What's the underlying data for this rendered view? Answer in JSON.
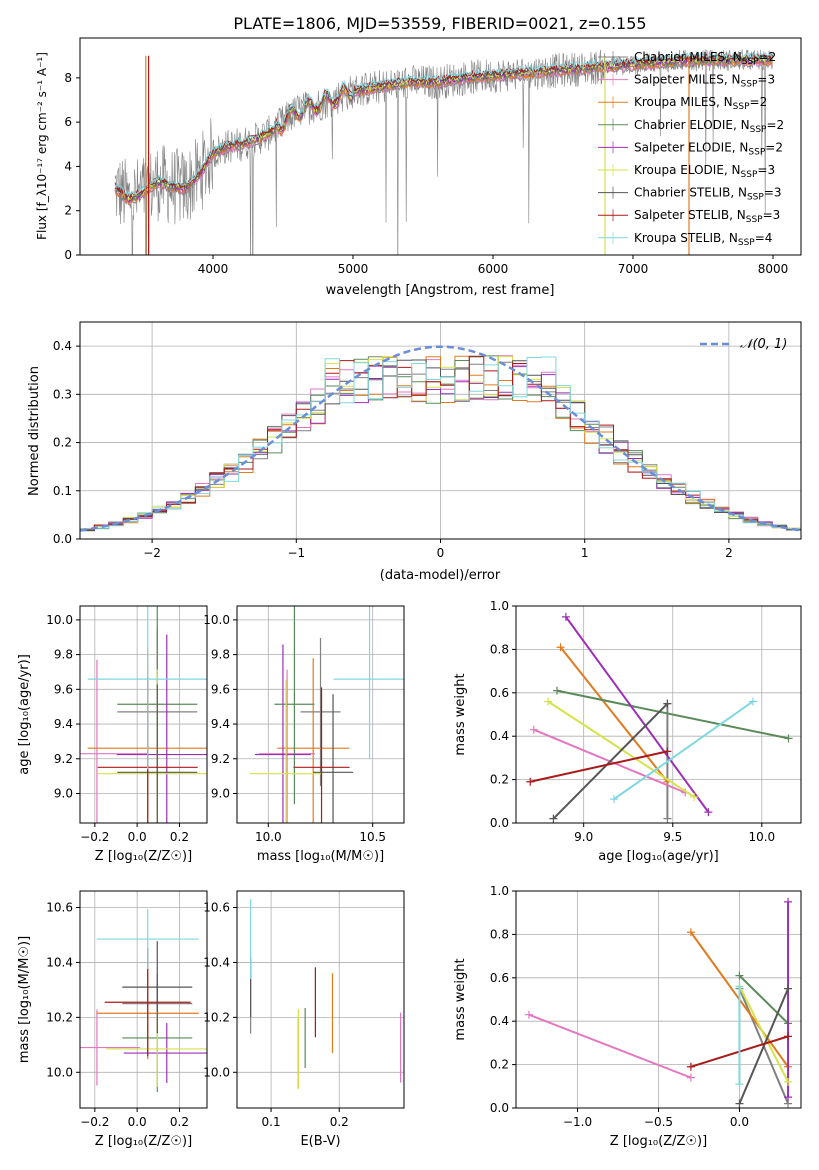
{
  "figure": {
    "title": "PLATE=1806, MJD=53559, FIBERID=0021, z=0.155"
  },
  "colors": {
    "c0": "#4d4d4d",
    "c1": "#e377c2",
    "c2": "#e07b20",
    "c3": "#5a8a5a",
    "c4": "#9b30b5",
    "c5": "#d4e34a",
    "c6": "#555555",
    "c7": "#aa1a1a",
    "c8": "#7fd8e0",
    "blue": "#6a8fd8",
    "data": "#808080"
  },
  "spectrum": {
    "xlabel": "wavelength [Angstrom, rest frame]",
    "ylabel": "Flux [f_λ10⁻¹⁷ erg cm⁻² s⁻¹ A⁻¹]",
    "xticks": [
      4000,
      5000,
      6000,
      7000,
      8000
    ],
    "yticks": [
      0,
      2,
      4,
      6,
      8
    ],
    "xlim": [
      3050,
      8200
    ],
    "ylim": [
      0,
      9.8
    ],
    "legend": [
      {
        "label": "Chabrier MILES, N_SSP=2",
        "color": "#808080"
      },
      {
        "label": "Salpeter MILES, N_SSP=3",
        "color": "#e377c2"
      },
      {
        "label": "Kroupa MILES, N_SSP=2",
        "color": "#e07b20"
      },
      {
        "label": "Chabrier ELODIE, N_SSP=2",
        "color": "#5a8a5a"
      },
      {
        "label": "Salpeter ELODIE, N_SSP=2",
        "color": "#9b30b5"
      },
      {
        "label": "Kroupa ELODIE, N_SSP=3",
        "color": "#d4e34a"
      },
      {
        "label": "Chabrier STELIB, N_SSP=3",
        "color": "#555555"
      },
      {
        "label": "Salpeter STELIB, N_SSP=3",
        "color": "#aa1a1a"
      },
      {
        "label": "Kroupa STELIB, N_SSP=4",
        "color": "#7fd8e0"
      }
    ]
  },
  "residuals": {
    "xlabel": "(data-model)/error",
    "ylabel": "Normed distribution",
    "legend": "𝒩(0, 1)",
    "xticks": [
      -2,
      -1,
      0,
      1,
      2
    ],
    "yticks": [
      0.0,
      0.1,
      0.2,
      0.3,
      0.4
    ],
    "xlim": [
      -2.5,
      2.5
    ],
    "ylim": [
      0,
      0.45
    ]
  },
  "panels": {
    "age_vs_z": {
      "xlabel": "Z [log₁₀(Z/Z☉)]",
      "ylabel": "age  [log₁₀(age/yr)]",
      "xticks": [
        -0.2,
        0.0,
        0.2
      ],
      "yticks": [
        9.0,
        9.2,
        9.4,
        9.6,
        9.8,
        10.0
      ]
    },
    "age_vs_mass": {
      "xlabel": "mass [log₁₀(M/M☉)]",
      "xticks": [
        10.0,
        10.5
      ],
      "yticks": [
        9.0,
        9.2,
        9.4,
        9.6,
        9.8,
        10.0
      ]
    },
    "weight_vs_age": {
      "xlabel": "age  [log₁₀(age/yr)]",
      "ylabel": "mass weight",
      "xticks": [
        9.0,
        9.5,
        10.0
      ],
      "yticks": [
        0.0,
        0.2,
        0.4,
        0.6,
        0.8,
        1.0
      ]
    },
    "mass_vs_z": {
      "xlabel": "Z [log₁₀(Z/Z☉)]",
      "ylabel": "mass [log₁₀(M/M☉)]",
      "xticks": [
        -0.2,
        0.0,
        0.2
      ],
      "yticks": [
        10.0,
        10.2,
        10.4,
        10.6
      ]
    },
    "mass_vs_ebv": {
      "xlabel": "E(B-V)",
      "xticks": [
        0.1,
        0.2
      ],
      "yticks": [
        10.0,
        10.2,
        10.4,
        10.6
      ]
    },
    "weight_vs_z": {
      "xlabel": "Z [log₁₀(Z/Z☉)]",
      "ylabel": "mass weight",
      "xticks": [
        -1.0,
        -0.5,
        0.0
      ],
      "yticks": [
        0.0,
        0.2,
        0.4,
        0.6,
        0.8,
        1.0
      ]
    }
  },
  "chart_data": [
    {
      "type": "line",
      "name": "spectrum_fit",
      "series_model_colors": [
        "#808080",
        "#e377c2",
        "#e07b20",
        "#5a8a5a",
        "#9b30b5",
        "#d4e34a",
        "#555555",
        "#aa1a1a",
        "#7fd8e0"
      ],
      "model_wavelength": [
        3300,
        3400,
        3500,
        3600,
        3700,
        3800,
        3900,
        4000,
        4100,
        4200,
        4300,
        4400,
        4500,
        4600,
        4800,
        5000,
        5200,
        5400,
        5600,
        5800,
        6000,
        6200,
        6400,
        6600,
        6800,
        7000,
        7200,
        7400
      ],
      "model_flux": [
        3.0,
        2.5,
        2.8,
        3.3,
        3.1,
        3.0,
        3.6,
        4.6,
        4.9,
        5.0,
        5.2,
        5.5,
        6.0,
        6.5,
        6.9,
        7.4,
        7.6,
        7.8,
        7.8,
        8.0,
        8.1,
        8.2,
        8.3,
        8.4,
        8.5,
        8.6,
        8.7,
        8.8
      ]
    },
    {
      "type": "bar",
      "name": "residual_histograms",
      "x": [
        -2.5,
        -2.4,
        -2.3,
        -2.2,
        -2.1,
        -2.0,
        -1.9,
        -1.8,
        -1.7,
        -1.6,
        -1.5,
        -1.4,
        -1.3,
        -1.2,
        -1.1,
        -1.0,
        -0.9,
        -0.8,
        -0.7,
        -0.6,
        -0.5,
        -0.4,
        -0.3,
        -0.2,
        -0.1,
        0.0,
        0.1,
        0.2,
        0.3,
        0.4,
        0.5,
        0.6,
        0.7,
        0.8,
        0.9,
        1.0,
        1.1,
        1.2,
        1.3,
        1.4,
        1.5,
        1.6,
        1.7,
        1.8,
        1.9,
        2.0,
        2.1,
        2.2,
        2.3,
        2.4
      ],
      "reference_gaussian": "N(0,1)"
    },
    {
      "type": "scatter",
      "name": "ssp_components",
      "models": [
        {
          "color": "#808080",
          "age": [
            9.47,
            9.47
          ],
          "Z": [
            0.0,
            0.3
          ],
          "mass": [
            10.35,
            10.15
          ],
          "weight": [
            0.55,
            0.02
          ],
          "ebv": 0.07,
          "age_err": 0.12
        },
        {
          "color": "#e377c2",
          "age": [
            8.72,
            9.57
          ],
          "Z": [
            -1.3,
            -0.3
          ],
          "mass": [
            10.13,
            10.05
          ],
          "weight": [
            0.43,
            0.14
          ],
          "ebv": 0.29,
          "age_err": 0.17
        },
        {
          "color": "#e07b20",
          "age": [
            8.87,
            9.47
          ],
          "Z": [
            -0.3,
            0.3
          ],
          "mass": [
            10.18,
            10.25
          ],
          "weight": [
            0.81,
            0.19
          ],
          "ebv": 0.19,
          "age_err": 0.2
        },
        {
          "color": "#5a8a5a",
          "age": [
            8.85,
            10.15
          ],
          "Z": [
            0.0,
            0.3
          ],
          "mass": [
            10.2,
            10.05
          ],
          "weight": [
            0.61,
            0.39
          ],
          "ebv": 0.15,
          "age_err": 0.25
        },
        {
          "color": "#9b30b5",
          "age": [
            8.9,
            9.7
          ],
          "Z": [
            0.3,
            0.3
          ],
          "mass": [
            10.09,
            10.05
          ],
          "weight": [
            0.95,
            0.05
          ],
          "ebv": 0.14,
          "age_err": 0.3
        },
        {
          "color": "#d4e34a",
          "age": [
            8.8,
            9.62
          ],
          "Z": [
            0.0,
            0.3
          ],
          "mass": [
            10.12,
            10.05
          ],
          "weight": [
            0.56,
            0.12
          ],
          "ebv": 0.14,
          "age_err": 0.22
        },
        {
          "color": "#555555",
          "age": [
            8.83,
            9.47
          ],
          "Z": [
            0.0,
            0.3
          ],
          "mass": [
            10.37,
            10.25
          ],
          "weight": [
            0.02,
            0.55
          ],
          "ebv": 0.07,
          "age_err": 0.14
        },
        {
          "color": "#aa1a1a",
          "age": [
            8.7,
            9.47
          ],
          "Z": [
            -0.3,
            0.3
          ],
          "mass": [
            10.31,
            10.2
          ],
          "weight": [
            0.19,
            0.33
          ],
          "ebv": 0.165,
          "age_err": 0.15
        },
        {
          "color": "#7fd8e0",
          "age": [
            9.17,
            9.95
          ],
          "Z": [
            0.0,
            0.0
          ],
          "mass": [
            10.52,
            10.45
          ],
          "weight": [
            0.11,
            0.56
          ],
          "ebv": 0.07,
          "age_err": 0.15
        }
      ]
    }
  ]
}
